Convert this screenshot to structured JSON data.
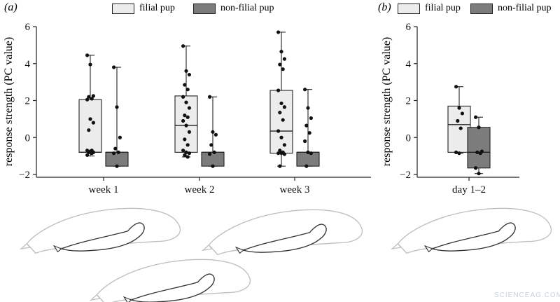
{
  "panels": {
    "a": {
      "label": "(a)"
    },
    "b": {
      "label": "(b)"
    }
  },
  "legend": {
    "filial": "filial pup",
    "nonfilial": "non-filial pup"
  },
  "colors": {
    "filial": "#ececec",
    "nonfilial": "#7c7c7c",
    "stroke": "#222222",
    "seal": "#bfbfbf"
  },
  "watermark": "SCIENCEAG.COM",
  "chart_data": [
    {
      "type": "box",
      "panel": "(a)",
      "ylabel": "response strength (PC value)",
      "ylim": [
        -2,
        6
      ],
      "yticks": [
        -2,
        0,
        2,
        4,
        6
      ],
      "ytick_labels": [
        "−2",
        "0",
        "2",
        "4",
        "6"
      ],
      "categories": [
        "week 1",
        "week 2",
        "week 3"
      ],
      "series": [
        {
          "name": "filial pup",
          "boxes": [
            {
              "min": -1.0,
              "q1": -0.8,
              "median": -0.8,
              "q3": 2.05,
              "max": 4.45,
              "points": [
                4.45,
                3.95,
                2.25,
                2.2,
                2.1,
                2.05,
                1.0,
                0.8,
                0.4,
                -0.7,
                -0.7,
                -0.75,
                -0.8,
                -0.8,
                -0.85,
                -0.95
              ]
            },
            {
              "min": -1.05,
              "q1": -0.8,
              "median": 0.65,
              "q3": 2.25,
              "max": 4.95,
              "points": [
                4.95,
                3.6,
                3.4,
                2.85,
                2.6,
                2.2,
                1.9,
                1.6,
                1.2,
                1.1,
                0.9,
                0.65,
                0.3,
                -0.1,
                -0.4,
                -0.7,
                -0.8,
                -0.85,
                -0.95,
                -1.05
              ]
            },
            {
              "min": -1.55,
              "q1": -0.85,
              "median": 0.35,
              "q3": 2.55,
              "max": 5.7,
              "points": [
                5.7,
                4.65,
                4.25,
                3.95,
                3.7,
                2.55,
                1.85,
                1.65,
                1.35,
                0.95,
                0.35,
                0.0,
                -0.4,
                -0.7,
                -0.8,
                -0.85,
                -0.85,
                -0.9,
                -1.55
              ]
            }
          ]
        },
        {
          "name": "non-filial pup",
          "boxes": [
            {
              "min": -1.55,
              "q1": -1.55,
              "median": -0.8,
              "q3": -0.8,
              "max": 3.8,
              "points": [
                3.8,
                1.65,
                0.0,
                -0.6,
                -0.8,
                -0.85,
                -1.55
              ]
            },
            {
              "min": -1.55,
              "q1": -1.55,
              "median": -0.8,
              "q3": -0.8,
              "max": 2.2,
              "points": [
                2.2,
                0.3,
                0.15,
                -0.4,
                -0.8,
                -0.9,
                -1.55
              ]
            },
            {
              "min": -1.55,
              "q1": -1.55,
              "median": -0.8,
              "q3": -0.8,
              "max": 2.6,
              "points": [
                2.6,
                1.6,
                1.05,
                0.65,
                0.25,
                -0.2,
                -0.8,
                -0.85,
                -1.55
              ]
            }
          ]
        }
      ]
    },
    {
      "type": "box",
      "panel": "(b)",
      "ylabel": "response strength (PC value)",
      "ylim": [
        -2,
        6
      ],
      "yticks": [
        -2,
        0,
        2,
        4,
        6
      ],
      "ytick_labels": [
        "−2",
        "0",
        "2",
        "4",
        "6"
      ],
      "categories": [
        "day 1–2"
      ],
      "series": [
        {
          "name": "filial pup",
          "boxes": [
            {
              "min": -0.85,
              "q1": -0.8,
              "median": 0.7,
              "q3": 1.7,
              "max": 2.75,
              "points": [
                2.75,
                1.6,
                1.3,
                0.9,
                0.5,
                -0.8,
                -0.85
              ]
            }
          ]
        },
        {
          "name": "non-filial pup",
          "boxes": [
            {
              "min": -1.95,
              "q1": -1.65,
              "median": -0.8,
              "q3": 0.55,
              "max": 1.1,
              "points": [
                1.1,
                0.55,
                -0.75,
                -0.8,
                -0.85,
                -1.65,
                -1.95
              ]
            }
          ]
        }
      ]
    }
  ]
}
